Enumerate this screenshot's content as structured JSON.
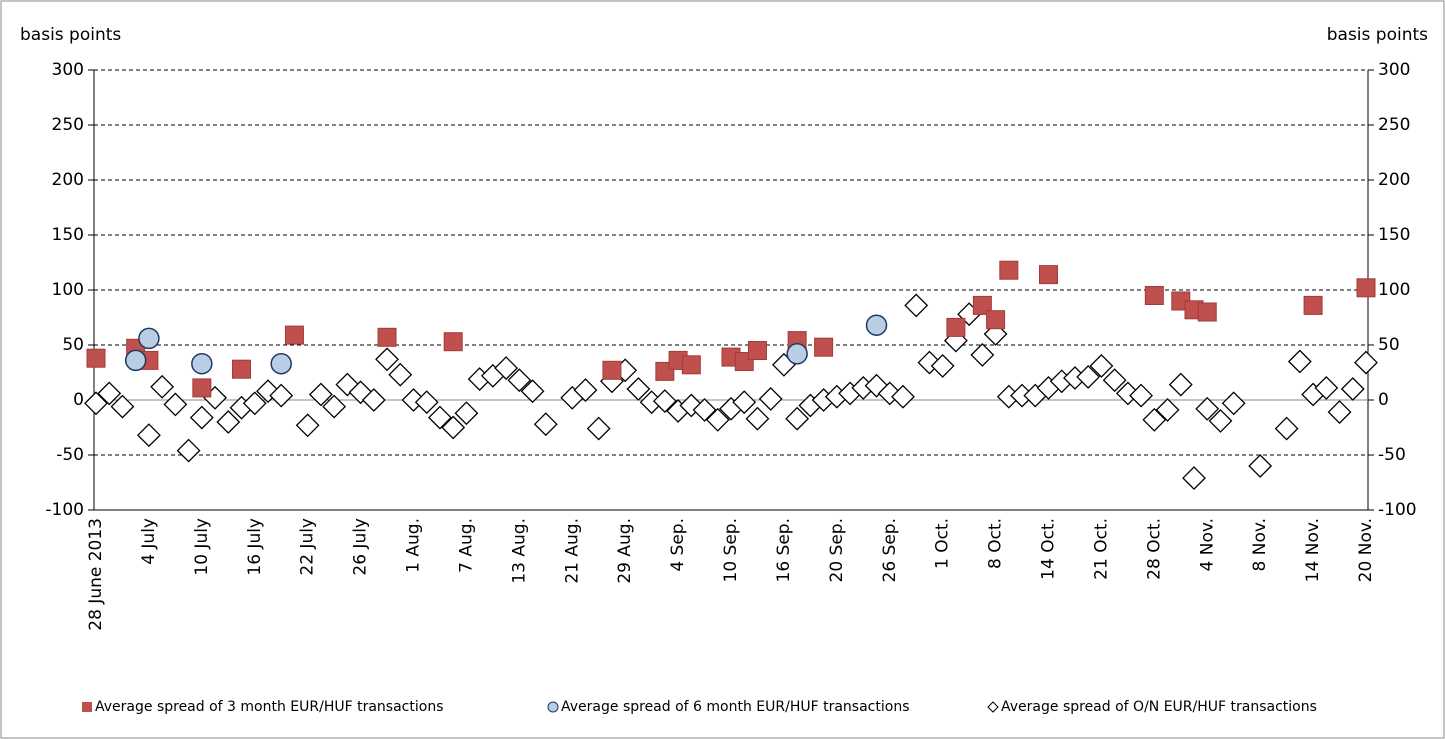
{
  "chart_data": {
    "type": "scatter",
    "y_label_left": "basis points",
    "y_label_right": "basis points",
    "categories": [
      "28 June 2013",
      null,
      null,
      null,
      "4 July",
      null,
      null,
      null,
      "10 July",
      null,
      null,
      null,
      "16 July",
      null,
      null,
      null,
      "22 July",
      null,
      null,
      null,
      "26 July",
      null,
      null,
      null,
      "1 Aug.",
      null,
      null,
      null,
      "7 Aug.",
      null,
      null,
      null,
      "13 Aug.",
      null,
      null,
      null,
      "21 Aug.",
      null,
      null,
      null,
      "29 Aug.",
      null,
      null,
      null,
      "4 Sep.",
      null,
      null,
      null,
      "10 Sep.",
      null,
      null,
      null,
      "16 Sep.",
      null,
      null,
      null,
      "20 Sep.",
      null,
      null,
      null,
      "26 Sep.",
      null,
      null,
      null,
      "1 Oct.",
      null,
      null,
      null,
      "8 Oct.",
      null,
      null,
      null,
      "14 Oct.",
      null,
      null,
      null,
      "21 Oct.",
      null,
      null,
      null,
      "28 Oct.",
      null,
      null,
      null,
      "4 Nov.",
      null,
      null,
      null,
      "8 Nov.",
      null,
      null,
      null,
      "14 Nov.",
      null,
      null,
      null,
      "20 Nov."
    ],
    "series": [
      {
        "name": "Average spread of 3 month EUR/HUF transactions",
        "color": "#c0504d",
        "marker": "square",
        "values": [
          38,
          null,
          null,
          47,
          36,
          null,
          null,
          null,
          11,
          null,
          null,
          28,
          null,
          null,
          null,
          59,
          null,
          null,
          null,
          null,
          null,
          null,
          57,
          null,
          null,
          null,
          null,
          53,
          null,
          null,
          null,
          null,
          null,
          null,
          null,
          null,
          null,
          null,
          null,
          27,
          null,
          null,
          null,
          26,
          36,
          32,
          null,
          null,
          39,
          35,
          45,
          null,
          null,
          54,
          null,
          48,
          null,
          null,
          null,
          null,
          null,
          null,
          null,
          null,
          null,
          66,
          null,
          86,
          73,
          118,
          null,
          null,
          114,
          null,
          null,
          null,
          null,
          null,
          null,
          null,
          95,
          null,
          90,
          82,
          80,
          null,
          null,
          null,
          null,
          null,
          null,
          null,
          86,
          null,
          null,
          null,
          102
        ]
      },
      {
        "name": "Average spread of 6 month EUR/HUF transactions",
        "color": "#b9cde5",
        "marker": "circle",
        "values": [
          null,
          null,
          null,
          36,
          56,
          null,
          null,
          null,
          33,
          null,
          null,
          null,
          null,
          null,
          33,
          null,
          null,
          null,
          null,
          null,
          null,
          null,
          null,
          null,
          null,
          null,
          null,
          null,
          null,
          null,
          null,
          null,
          null,
          null,
          null,
          null,
          null,
          null,
          null,
          null,
          null,
          null,
          null,
          null,
          null,
          null,
          null,
          null,
          null,
          null,
          null,
          null,
          null,
          42,
          null,
          null,
          null,
          null,
          null,
          68,
          null,
          null,
          null,
          null,
          null,
          null,
          null,
          null,
          null,
          null,
          null,
          null,
          null,
          null,
          null,
          null,
          null,
          null,
          null,
          null,
          null,
          null,
          null,
          null,
          null,
          null,
          null,
          null,
          null,
          null,
          null,
          null,
          null,
          null,
          null,
          null,
          null
        ]
      },
      {
        "name": "Average spread of O/N EUR/HUF transactions",
        "color": "#ffffff",
        "marker": "diamond",
        "values": [
          -3,
          6,
          -6,
          null,
          -32,
          12,
          -4,
          -46,
          -16,
          2,
          -20,
          -7,
          -3,
          8,
          4,
          null,
          -23,
          5,
          -6,
          14,
          7,
          0,
          37,
          23,
          0,
          -2,
          -16,
          -25,
          -12,
          19,
          22,
          29,
          18,
          8,
          -22,
          null,
          2,
          9,
          -26,
          17,
          27,
          10,
          -2,
          -1,
          -10,
          -5,
          -9,
          -18,
          -8,
          -2,
          -17,
          1,
          32,
          -17,
          -5,
          0,
          3,
          6,
          11,
          13,
          6,
          3,
          86,
          34,
          31,
          54,
          78,
          41,
          60,
          3,
          4,
          4,
          11,
          17,
          20,
          21,
          31,
          18,
          6,
          4,
          -18,
          -9,
          14,
          -71,
          -8,
          -19,
          -3,
          null,
          -60,
          null,
          -26,
          35,
          5,
          11,
          -11,
          10,
          34
        ]
      }
    ],
    "ylim": [
      -100,
      300
    ],
    "yticks": [
      -100,
      -50,
      0,
      50,
      100,
      150,
      200,
      250,
      300
    ],
    "y2lim": [
      -100,
      300
    ],
    "y2ticks": [
      -100,
      -50,
      0,
      50,
      100,
      150,
      200,
      250,
      300
    ],
    "grid": true
  }
}
